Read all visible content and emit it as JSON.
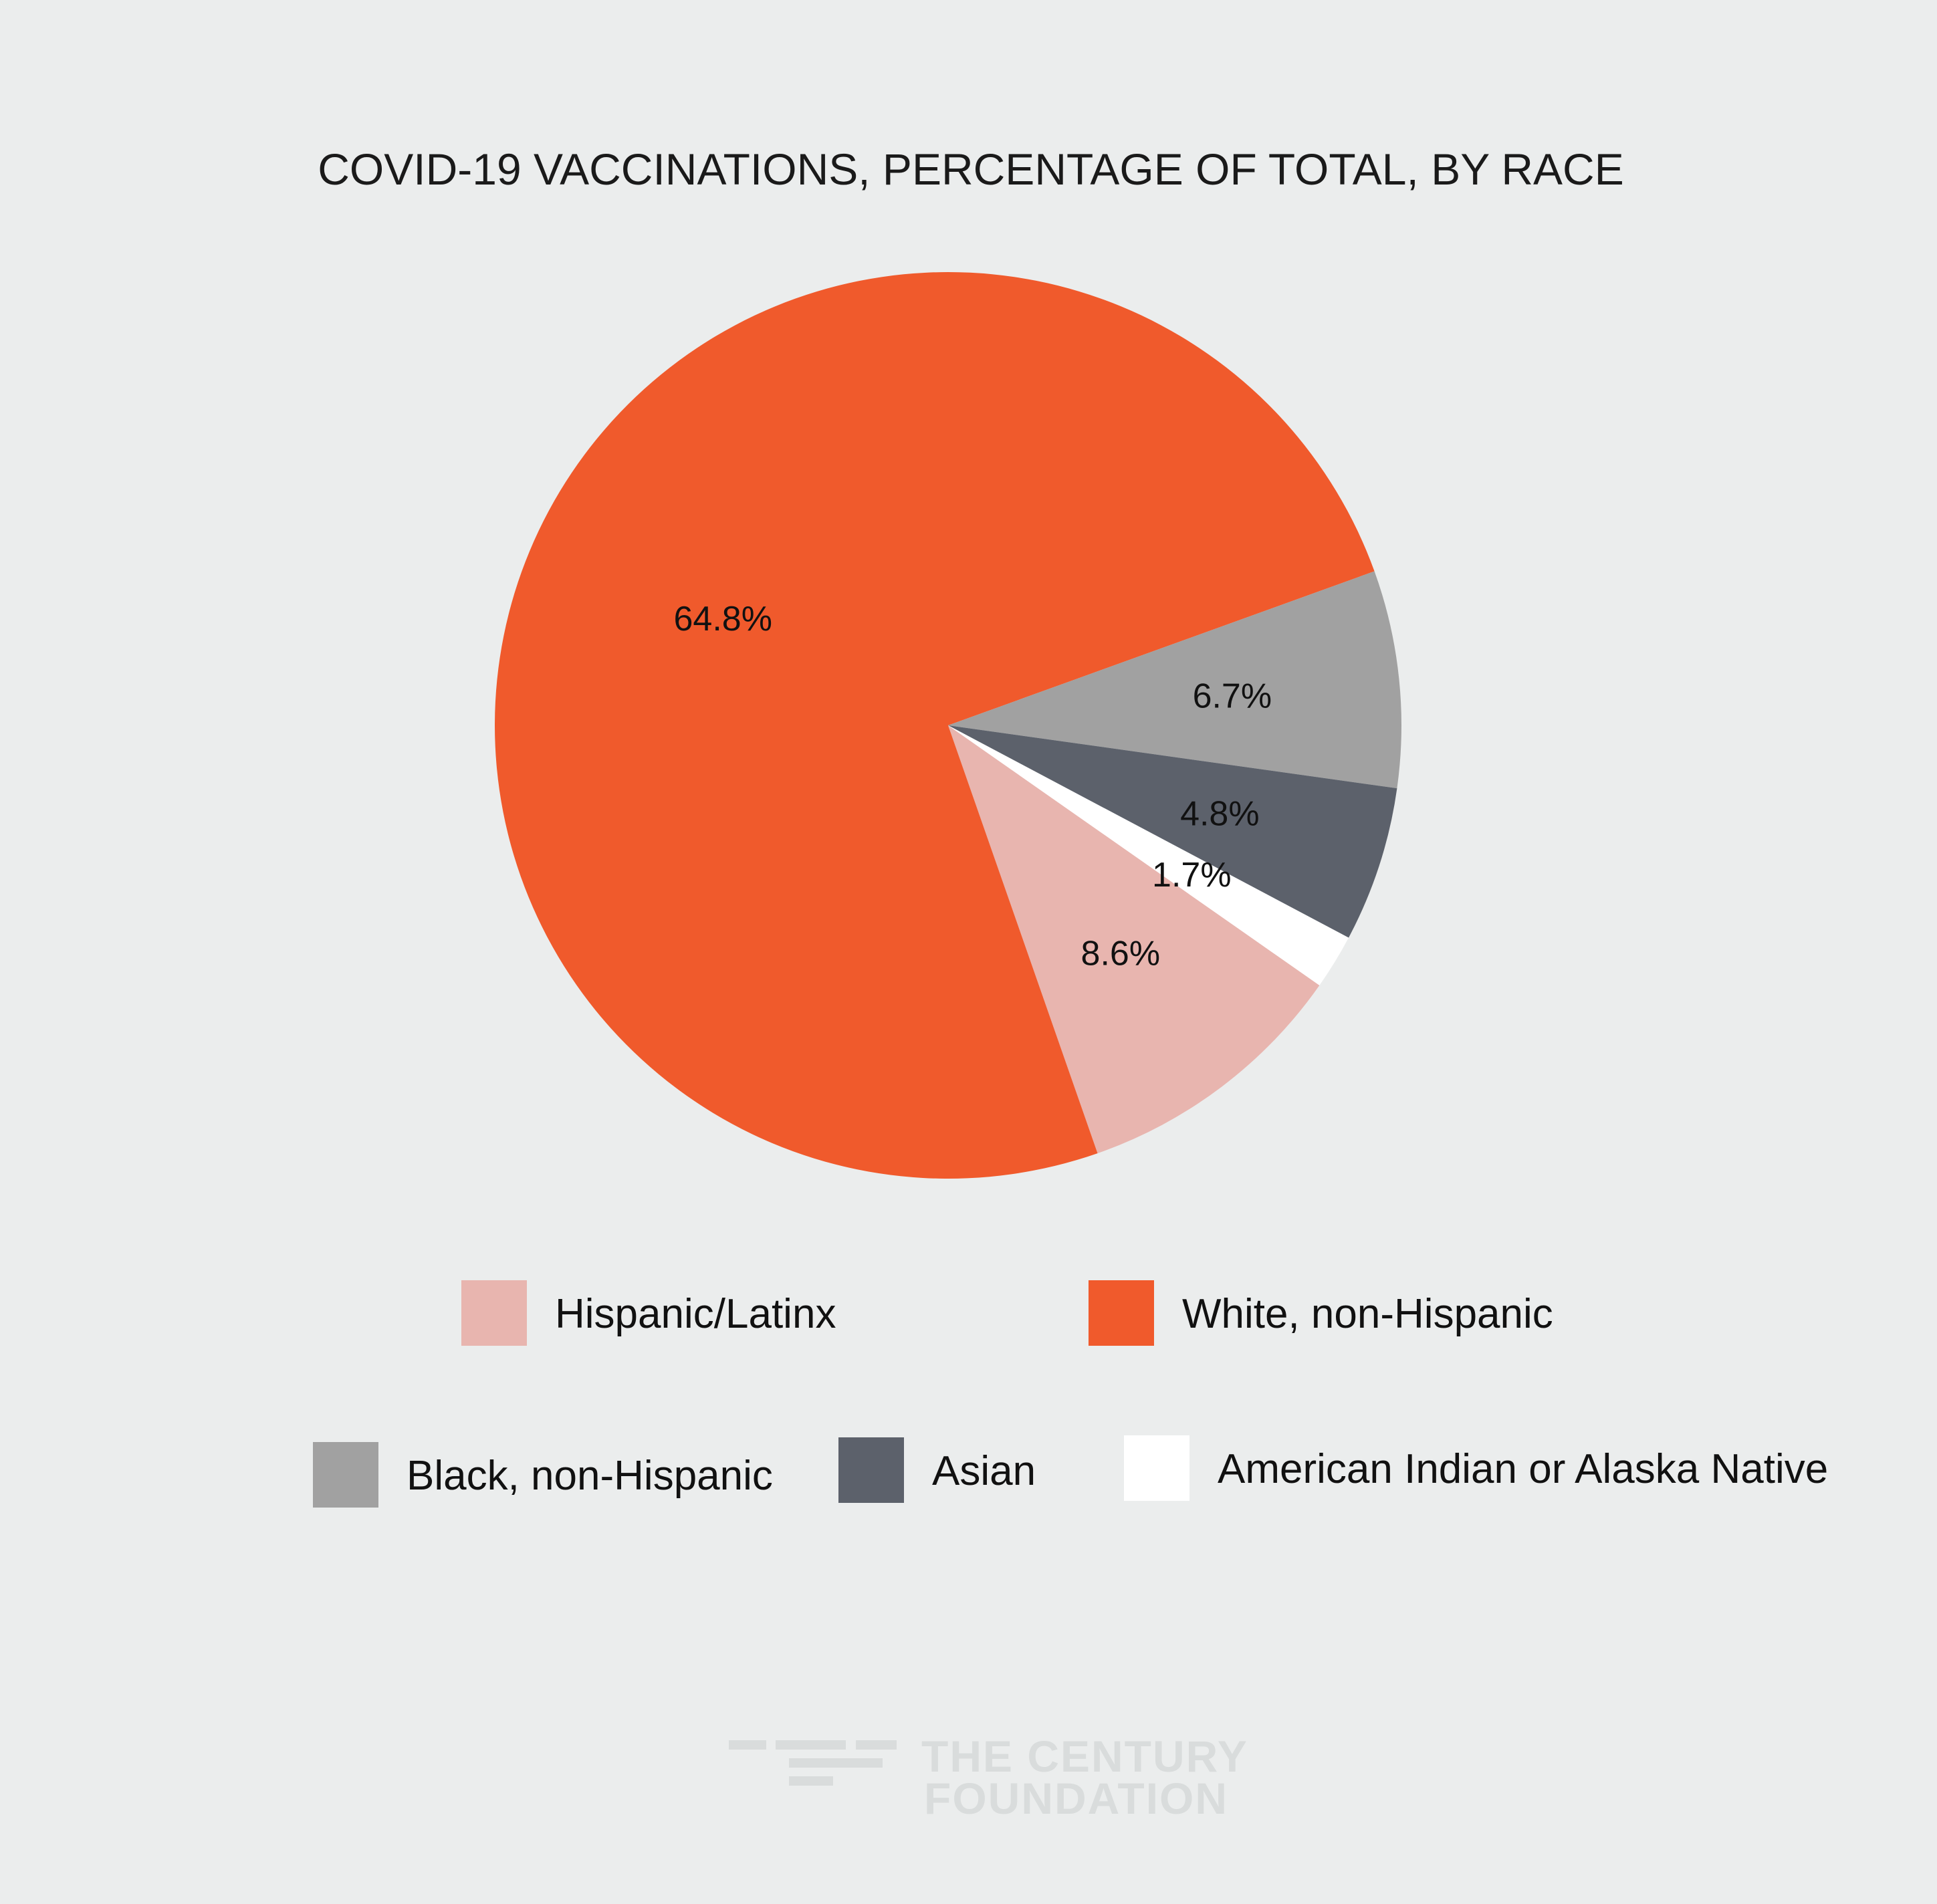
{
  "chart_data": {
    "type": "pie",
    "title": "COVID-19 VACCINATIONS, PERCENTAGE OF TOTAL, BY RACE",
    "slices": [
      {
        "name": "Hispanic/Latinx",
        "value": 8.6,
        "label": "8.6%",
        "color": "#e8b5af"
      },
      {
        "name": "White, non-Hispanic",
        "value": 64.8,
        "label": "64.8%",
        "color": "#f05a2c"
      },
      {
        "name": "Black, non-Hispanic",
        "value": 6.7,
        "label": "6.7%",
        "color": "#a1a1a1"
      },
      {
        "name": "Asian",
        "value": 4.8,
        "label": "4.8%",
        "color": "#5c616b"
      },
      {
        "name": "American Indian or Alaska Native",
        "value": 1.7,
        "label": "1.7%",
        "color": "#ffffff"
      }
    ],
    "legend_placement": "bottom"
  },
  "logo": {
    "line1": "THE CENTURY",
    "line2": "FOUNDATION",
    "color": "#d9dcdc"
  }
}
